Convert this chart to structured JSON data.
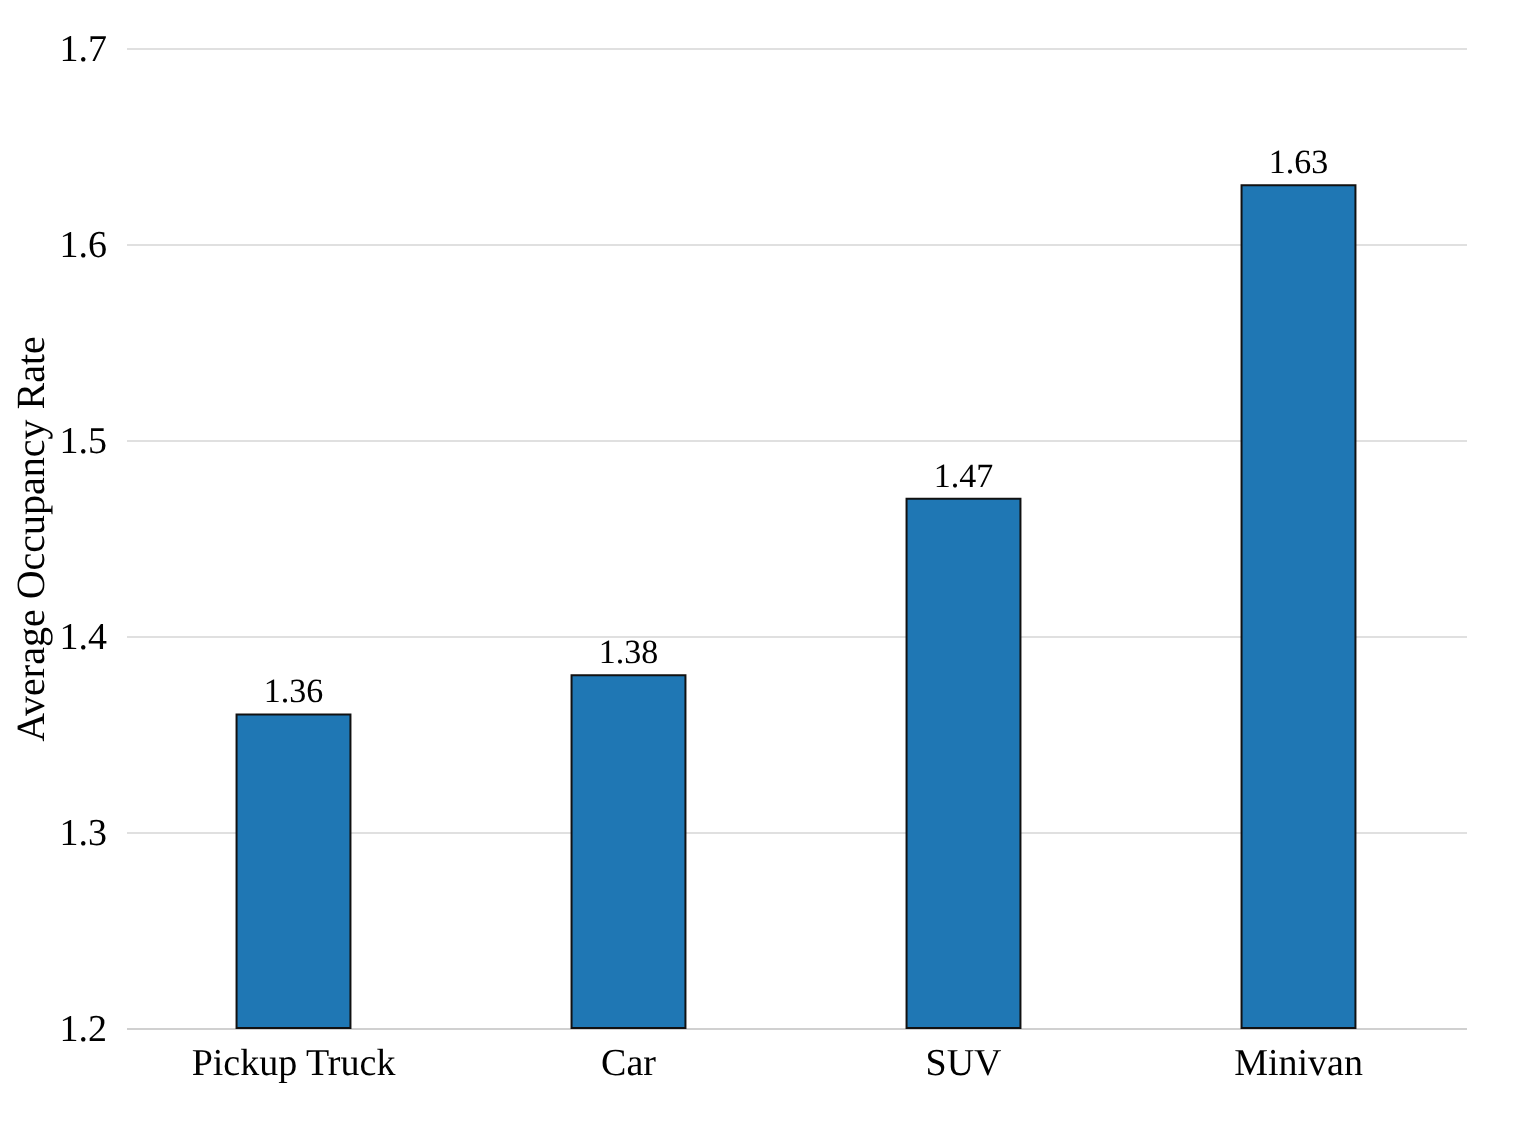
{
  "chart_data": {
    "type": "bar",
    "ylabel": "Average Occupancy Rate",
    "categories": [
      "Pickup Truck",
      "Car",
      "SUV",
      "Minivan"
    ],
    "values": [
      1.36,
      1.38,
      1.47,
      1.63
    ],
    "color": "#1f77b4",
    "ylim": [
      1.2,
      1.7
    ],
    "yticks": [
      1.2,
      1.3,
      1.4,
      1.5,
      1.6,
      1.7
    ],
    "grid": "y",
    "data_labels": true
  }
}
